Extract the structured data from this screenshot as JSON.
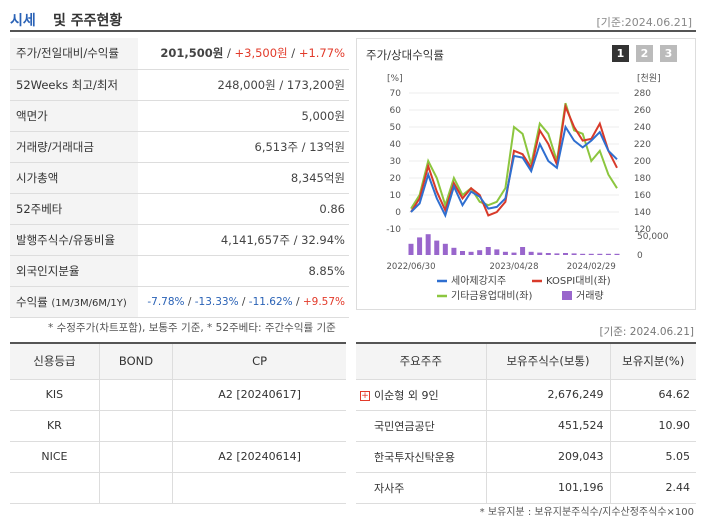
{
  "header": {
    "title_a": "시세",
    "title_b": "및 주주현황",
    "date": "[기준:2024.06.21]"
  },
  "summary": {
    "price_label": "주가/전일대비/수익률",
    "price": "201,500원",
    "price_sep1": " / ",
    "change": "+3,500원",
    "price_sep2": " / ",
    "change_pct": "+1.77%",
    "w52_label": "52Weeks 최고/최저",
    "w52_value": "248,000원 / 173,200원",
    "par_label": "액면가",
    "par_value": "5,000원",
    "volume_label": "거래량/거래대금",
    "volume_value": "6,513주 / 13억원",
    "mcap_label": "시가총액",
    "mcap_value": "8,345억원",
    "beta_label": "52주베타",
    "beta_value": "0.86",
    "shares_label": "발행주식수/유동비율",
    "shares_value": "4,141,657주 / 32.94%",
    "foreign_label": "외국인지분율",
    "foreign_value": "8.85%",
    "return_label": "수익률",
    "return_sub": "(1M/3M/6M/1Y)",
    "return_1m": "-7.78%",
    "return_3m": "-13.33%",
    "return_6m": "-11.62%",
    "return_1y": "+9.57%",
    "return_sep": " / "
  },
  "chart": {
    "title": "주가/상대수익률",
    "pages": [
      "1",
      "2",
      "3"
    ],
    "left_unit": "[%]",
    "right_unit": "[천원]",
    "volume_tick": "50,000",
    "volume_zero": "0"
  },
  "chart_data": {
    "type": "line",
    "x_ticks": [
      "2022/06/30",
      "2023/04/28",
      "2024/02/29"
    ],
    "left_axis": {
      "ticks": [
        -10,
        0,
        10,
        20,
        30,
        40,
        50,
        60,
        70
      ],
      "ylim": [
        -10,
        70
      ]
    },
    "right_axis": {
      "ticks": [
        120,
        140,
        160,
        180,
        200,
        220,
        240,
        260,
        280
      ],
      "ylim": [
        120,
        280
      ]
    },
    "series": [
      {
        "name": "세아제강지주",
        "color": "#2f6fd0",
        "axis": "left",
        "values": [
          0,
          5,
          22,
          8,
          -2,
          15,
          4,
          12,
          9,
          2,
          3,
          8,
          33,
          32,
          24,
          40,
          30,
          26,
          50,
          42,
          38,
          42,
          47,
          36,
          31
        ]
      },
      {
        "name": "KOSPI대비(좌)",
        "color": "#d83a2a",
        "axis": "left",
        "values": [
          0,
          8,
          27,
          12,
          1,
          17,
          8,
          14,
          10,
          -2,
          0,
          6,
          36,
          34,
          26,
          48,
          40,
          28,
          62,
          50,
          42,
          43,
          52,
          36,
          26
        ]
      },
      {
        "name": "기타금융업대비(좌)",
        "color": "#8cc63f",
        "axis": "left",
        "values": [
          2,
          10,
          30,
          20,
          4,
          20,
          10,
          14,
          6,
          4,
          6,
          14,
          50,
          46,
          28,
          52,
          46,
          30,
          64,
          48,
          46,
          30,
          36,
          22,
          14
        ]
      },
      {
        "name": "거래량",
        "color": "#9966cc",
        "axis": "volume",
        "values": [
          28000,
          44000,
          52000,
          36000,
          28000,
          18000,
          10000,
          8000,
          12000,
          20000,
          14000,
          8000,
          6000,
          20000,
          8000,
          6000,
          5000,
          4000,
          5000,
          4000,
          3000,
          3000,
          3000,
          3000,
          3000
        ]
      }
    ],
    "volume_ylim": [
      0,
      60000
    ]
  },
  "notes": {
    "note1": "* 수정주가(차트포함), 보통주 기준, * 52주베타: 주간수익률 기준",
    "date2": "[기준: 2024.06.21]",
    "note2": "* 보유지분 : 보유지분주식수/지수산정주식수×100"
  },
  "credit": {
    "headers": [
      "신용등급",
      "BOND",
      "CP"
    ],
    "rows": [
      [
        "KIS",
        "",
        "A2 [20240617]"
      ],
      [
        "KR",
        "",
        ""
      ],
      [
        "NICE",
        "",
        "A2 [20240614]"
      ],
      [
        "",
        "",
        ""
      ]
    ]
  },
  "holders": {
    "headers": [
      "주요주주",
      "보유주식수(보통)",
      "보유지분(%)"
    ],
    "rows": [
      {
        "name": "이순형 외 9인",
        "shares": "2,676,249",
        "pct": "64.62",
        "expand": true
      },
      {
        "name": "국민연금공단",
        "shares": "451,524",
        "pct": "10.90",
        "expand": false
      },
      {
        "name": "한국투자신탁운용",
        "shares": "209,043",
        "pct": "5.05",
        "expand": false
      },
      {
        "name": "자사주",
        "shares": "101,196",
        "pct": "2.44",
        "expand": false
      }
    ]
  }
}
